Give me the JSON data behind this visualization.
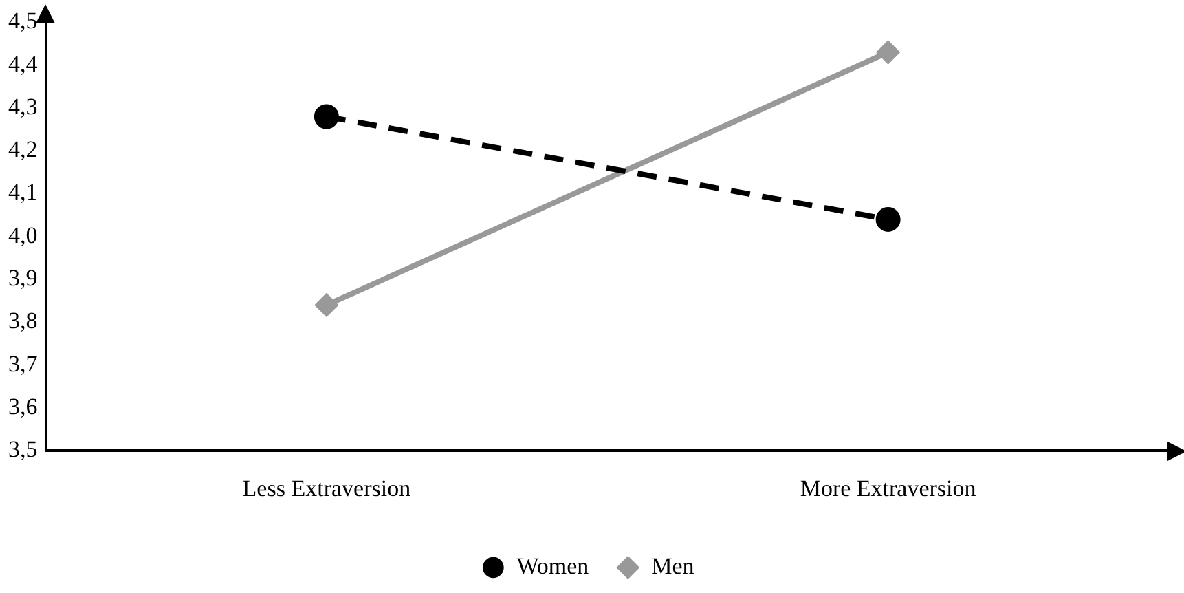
{
  "chart_data": {
    "type": "line",
    "categories": [
      "Less Extraversion",
      "More Extraversion"
    ],
    "series": [
      {
        "name": "Women",
        "color": "#000000",
        "values": [
          4.28,
          4.04
        ],
        "marker": "circle",
        "line_style": "dashed"
      },
      {
        "name": "Men",
        "color": "#999999",
        "values": [
          3.84,
          4.43
        ],
        "marker": "diamond",
        "line_style": "solid"
      }
    ],
    "ylim": [
      3.5,
      4.5
    ],
    "yticks": [
      {
        "value": 3.5,
        "label": "3,5"
      },
      {
        "value": 3.6,
        "label": "3,6"
      },
      {
        "value": 3.7,
        "label": "3,7"
      },
      {
        "value": 3.8,
        "label": "3,8"
      },
      {
        "value": 3.9,
        "label": "3,9"
      },
      {
        "value": 4.0,
        "label": "4,0"
      },
      {
        "value": 4.1,
        "label": "4,1"
      },
      {
        "value": 4.2,
        "label": "4,2"
      },
      {
        "value": 4.3,
        "label": "4,3"
      },
      {
        "value": 4.4,
        "label": "4,4"
      },
      {
        "value": 4.5,
        "label": "4,5"
      }
    ],
    "grid": false,
    "legend": "bottom"
  }
}
